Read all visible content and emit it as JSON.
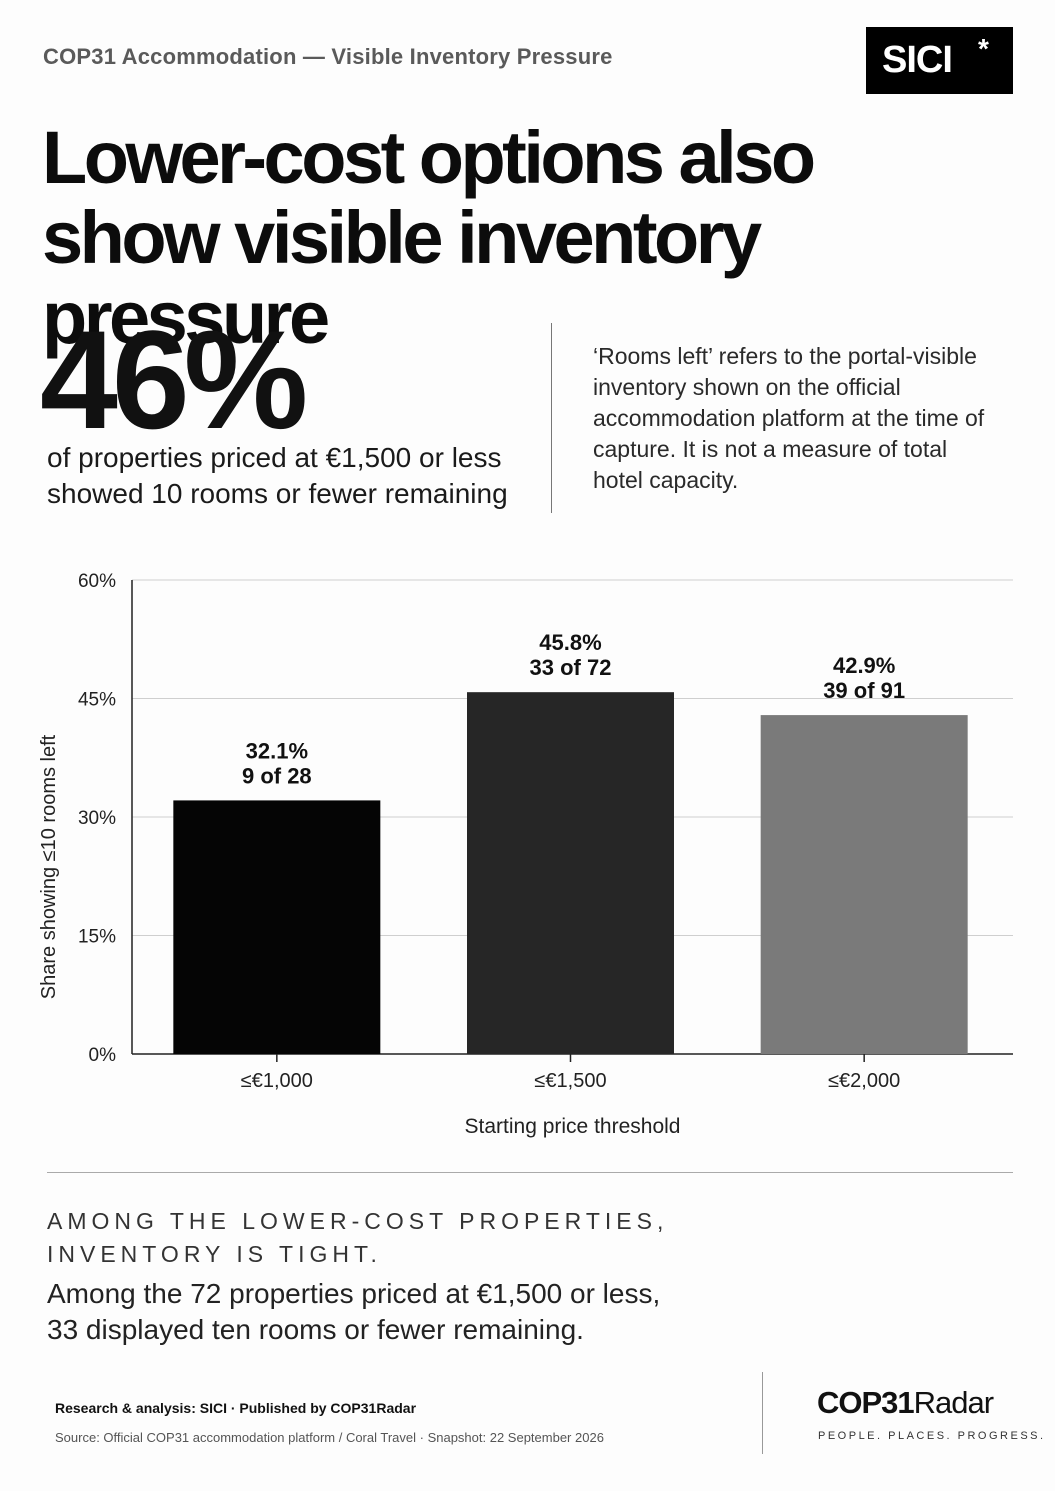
{
  "header": {
    "kicker": "COP31 Accommodation — Visible Inventory Pressure",
    "brand": "SICI",
    "brand_mark": "*"
  },
  "headline": {
    "line1": "Lower-cost options also",
    "line2": "show visible inventory pressure"
  },
  "stat": {
    "value": "46%",
    "desc_line1": "of properties priced at €1,500 or less",
    "desc_line2": "showed 10 rooms or fewer remaining"
  },
  "note": "‘Rooms left’ refers to the portal-visible inventory shown on the official accommodation platform at the time of capture. It is not a measure of total hotel capacity.",
  "chart_data": {
    "type": "bar",
    "categories": [
      "≤€1,000",
      "≤€1,500",
      "≤€2,000"
    ],
    "values": [
      32.1,
      45.8,
      42.9
    ],
    "value_labels": [
      "32.1%",
      "45.8%",
      "42.9%"
    ],
    "count_labels": [
      "9 of 28",
      "33 of 72",
      "39 of 91"
    ],
    "colors": [
      "#050505",
      "#262626",
      "#7a7a7a"
    ],
    "xlabel": "Starting price threshold",
    "ylabel": "Share showing ≤10 rooms left",
    "ylim": [
      0,
      60
    ],
    "yticks": [
      0,
      15,
      30,
      45,
      60
    ],
    "ytick_labels": [
      "0%",
      "15%",
      "30%",
      "45%",
      "60%"
    ],
    "grid": true
  },
  "summary": {
    "eyebrow_line1": "AMONG THE LOWER-COST PROPERTIES,",
    "eyebrow_line2": "INVENTORY IS TIGHT.",
    "body_line1": "Among the 72 properties priced at €1,500 or less,",
    "body_line2": "33 displayed ten rooms or fewer remaining."
  },
  "footer": {
    "credit": "Research & analysis: SICI · Published by COP31Radar",
    "source": "Source: Official COP31 accommodation platform / Coral Travel · Snapshot: 22 September 2026",
    "logo_bold": "COP31",
    "logo_light": "Radar",
    "tagline": "PEOPLE. PLACES. PROGRESS."
  }
}
